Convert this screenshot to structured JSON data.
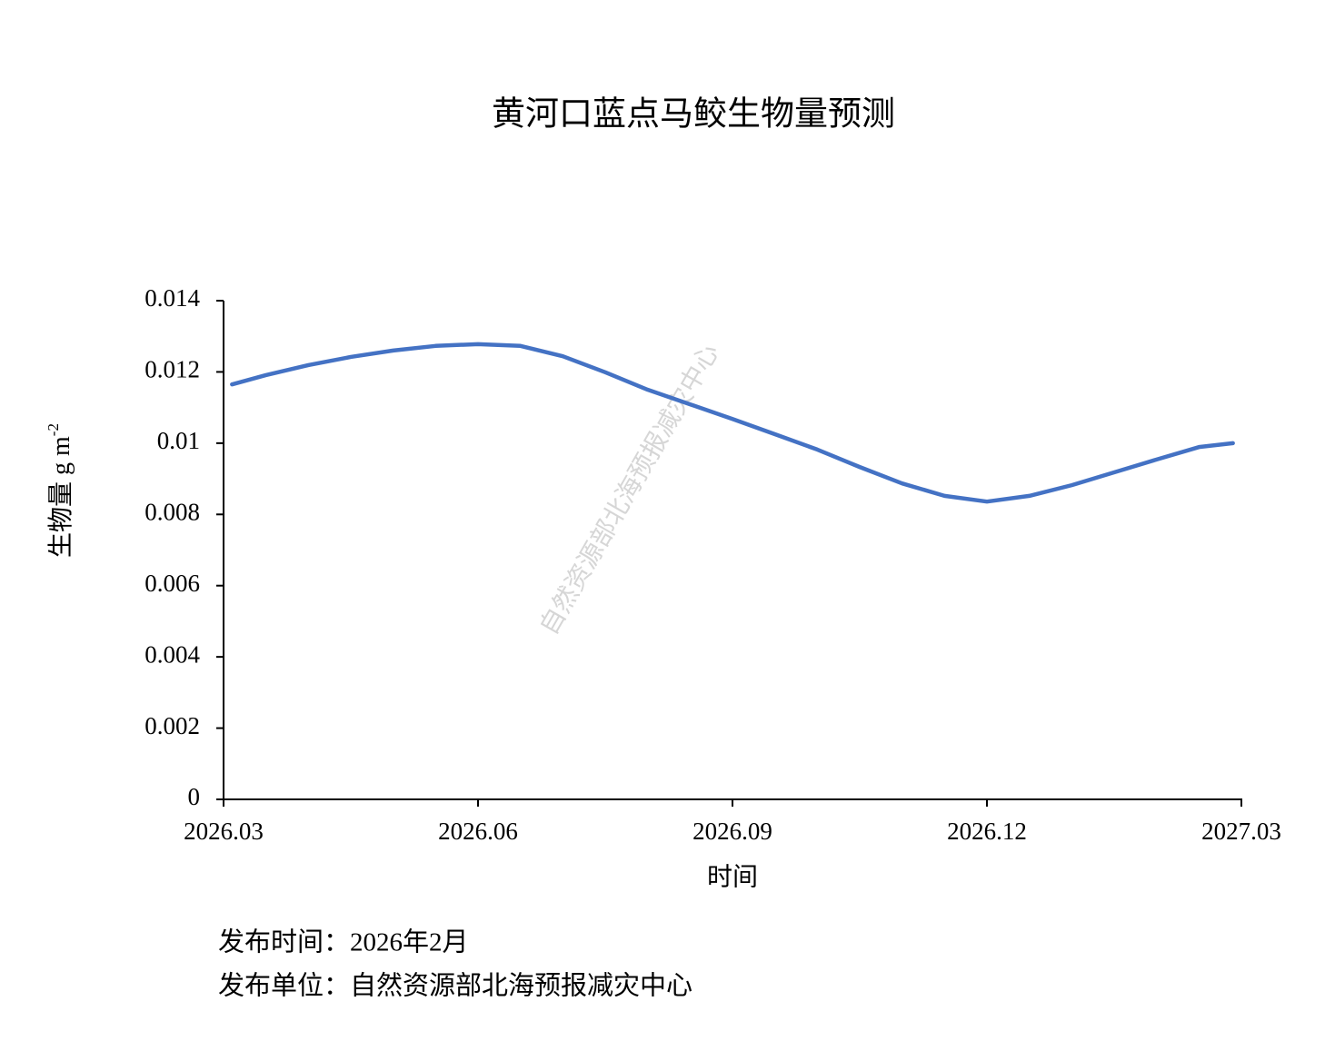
{
  "chart_data": {
    "type": "line",
    "title": "黄河口蓝点马鲛生物量预测",
    "xlabel": "时间",
    "ylabel": {
      "text": "生物量 g m",
      "superscript": "-2"
    },
    "watermark": "自然资源部北海预报减灾中心",
    "footer": [
      "发布时间：2026年2月",
      "发布单位：自然资源部北海预报减灾中心"
    ],
    "x": [
      0.1,
      0.5,
      1,
      1.5,
      2,
      2.5,
      3,
      3.5,
      4,
      4.5,
      5,
      5.5,
      6,
      6.5,
      7,
      7.5,
      8,
      8.5,
      9,
      9.5,
      10,
      10.5,
      11,
      11.5,
      11.9
    ],
    "series": [
      {
        "color": "#4472c4",
        "values": [
          0.01165,
          0.01191,
          0.01219,
          0.01242,
          0.0126,
          0.01273,
          0.01278,
          0.01273,
          0.01244,
          0.01199,
          0.0115,
          0.01109,
          0.01068,
          0.01025,
          0.00982,
          0.00933,
          0.00887,
          0.00852,
          0.00836,
          0.00852,
          0.00882,
          0.00918,
          0.00954,
          0.00989,
          0.01
        ]
      }
    ],
    "xlim": [
      0,
      12
    ],
    "xticks": [
      {
        "value": 0,
        "label": "2026.03"
      },
      {
        "value": 3,
        "label": "2026.06"
      },
      {
        "value": 6,
        "label": "2026.09"
      },
      {
        "value": 9,
        "label": "2026.12"
      },
      {
        "value": 12,
        "label": "2027.03"
      }
    ],
    "ylim": [
      0,
      0.014
    ],
    "yticks": [
      0,
      0.002,
      0.004,
      0.006,
      0.008,
      0.01,
      0.012,
      0.014
    ],
    "grid": false
  }
}
